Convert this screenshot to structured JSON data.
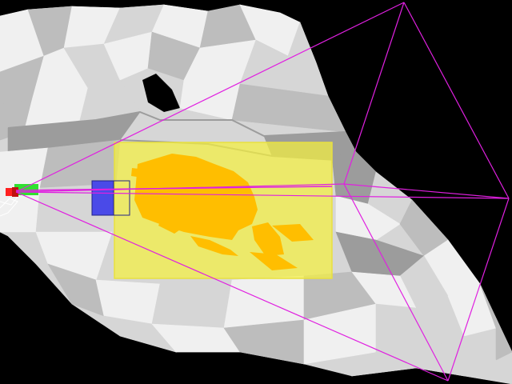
{
  "scene": {
    "type": "3d-debug-viewport",
    "background_color": "#000000",
    "terrain_colors": {
      "light": "#f0f0f0",
      "mid": "#d6d6d6",
      "shade": "#bdbdbd",
      "dark": "#9c9c9c"
    },
    "frustum": {
      "color": "#e020e0",
      "shape": "wireframe-pyramid"
    },
    "selection_box": {
      "fill": "#f4f040",
      "opacity": 0.72,
      "border": "#e8e040"
    },
    "highlight_region": {
      "fill": "#ffbe00"
    },
    "marker_box": {
      "fill": "#4a4ae8",
      "border": "#222288"
    },
    "origin_markers": {
      "red": "#ff2020",
      "green": "#30e030",
      "white": "#ffffff"
    },
    "icons": [
      "camera-frustum",
      "selection-box",
      "marker-cube",
      "origin-gizmo"
    ]
  }
}
